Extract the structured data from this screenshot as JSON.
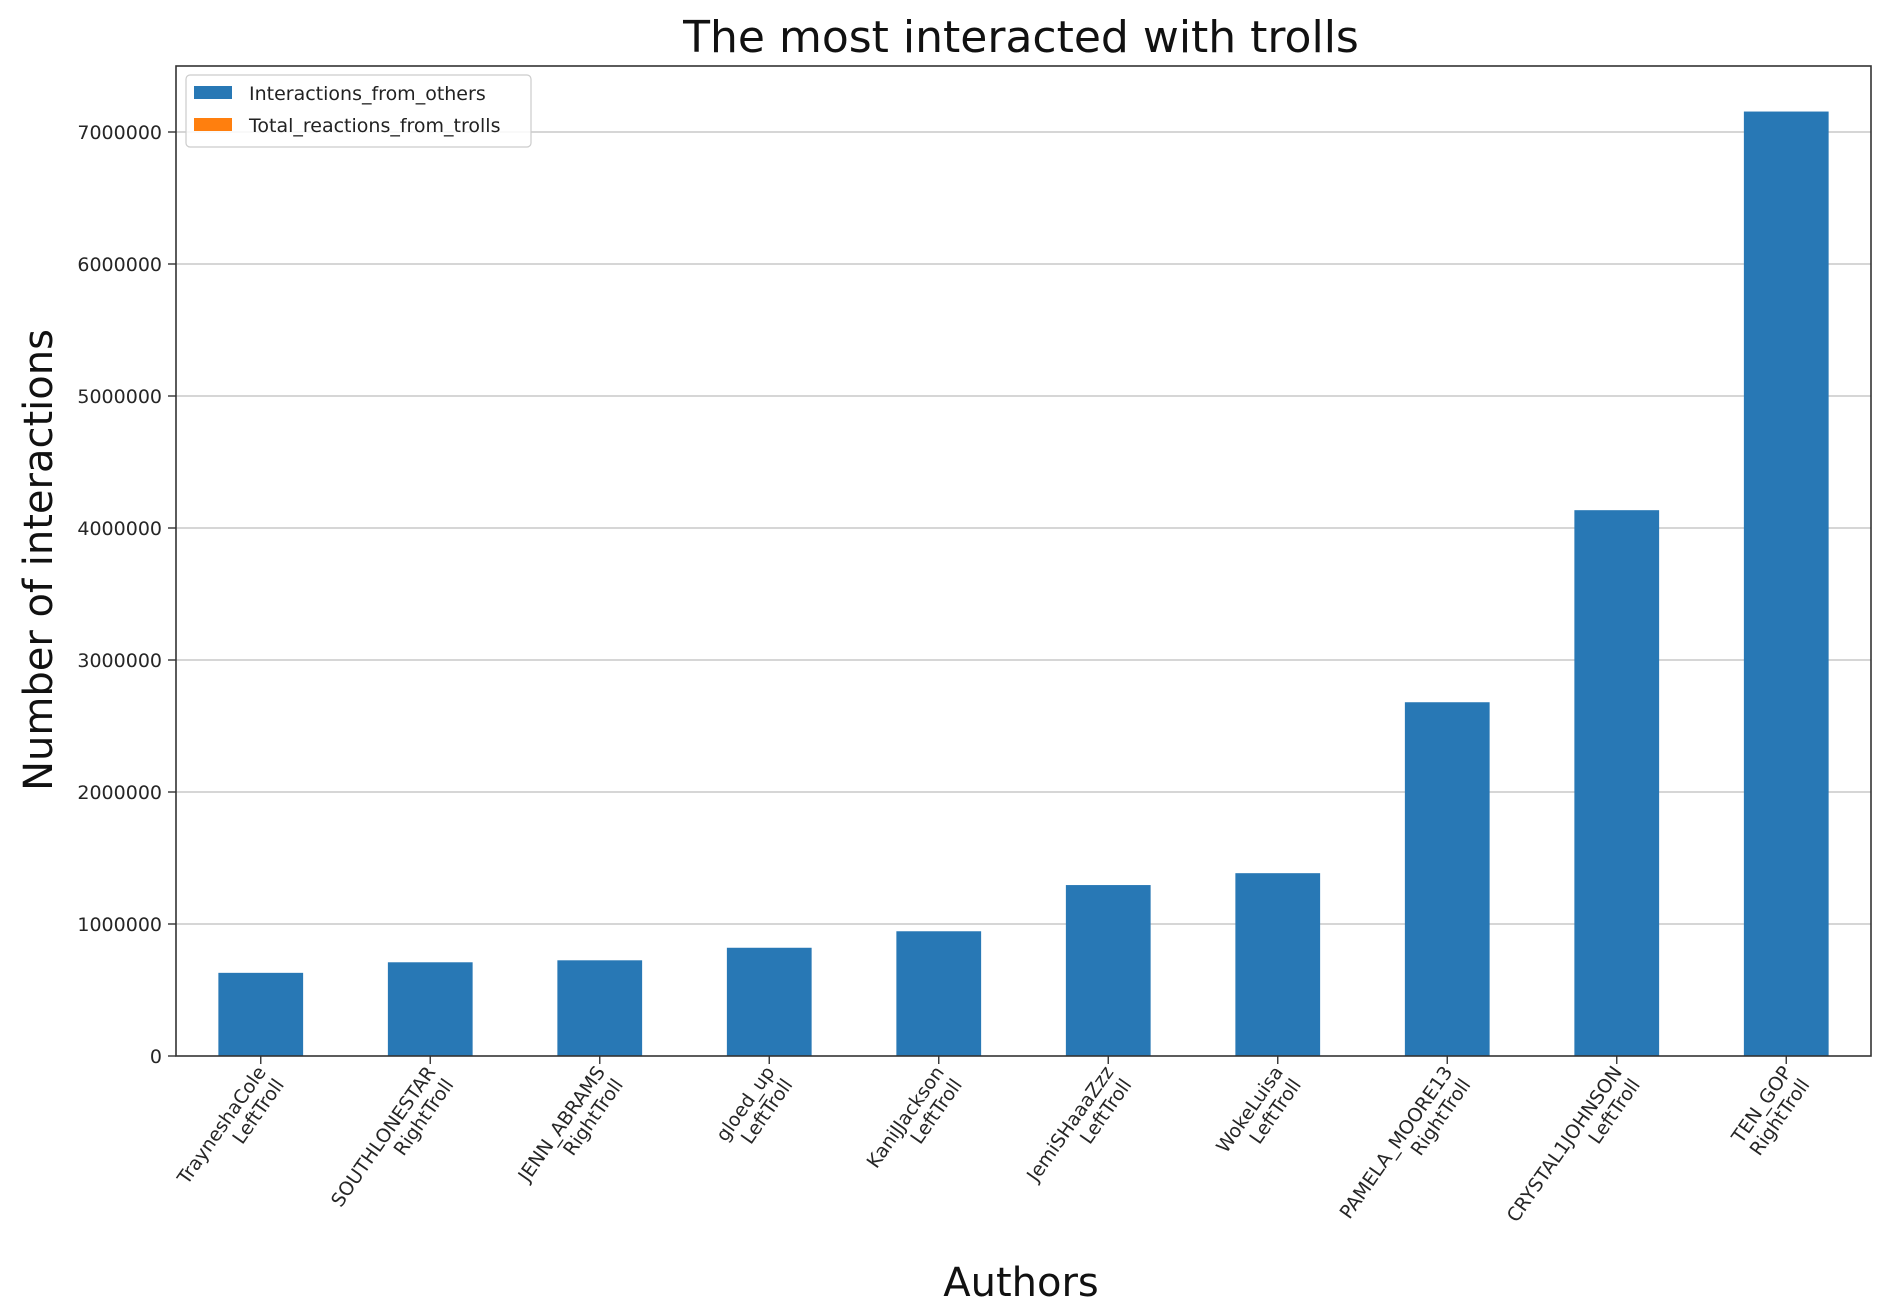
{
  "chart_data": {
    "type": "bar",
    "title": "The most interacted with trolls",
    "xlabel": "Authors",
    "ylabel": "Number of interactions",
    "categories": [
      [
        "TrayneshaCole",
        "LeftTroll"
      ],
      [
        "SOUTHLONESTAR",
        "RightTroll"
      ],
      [
        "JENN_ABRAMS",
        "RightTroll"
      ],
      [
        "gloed_up",
        "LeftTroll"
      ],
      [
        "KaniJJackson",
        "LeftTroll"
      ],
      [
        "JemiSHaaaZzz",
        "LeftTroll"
      ],
      [
        "WokeLuisa",
        "LeftTroll"
      ],
      [
        "PAMELA_MOORE13",
        "RightTroll"
      ],
      [
        "CRYSTAL1JOHNSON",
        "LeftTroll"
      ],
      [
        "TEN_GOP",
        "RightTroll"
      ]
    ],
    "series": [
      {
        "name": "Interactions_from_others",
        "color": "#2878b5",
        "values": [
          630000,
          710000,
          725000,
          820000,
          945000,
          1295000,
          1385000,
          2680000,
          4135000,
          7155000
        ]
      },
      {
        "name": "Total_reactions_from_trolls",
        "color": "#ff7f0e",
        "values": [
          0,
          0,
          0,
          0,
          0,
          0,
          0,
          0,
          0,
          0
        ]
      }
    ],
    "ylim": [
      0,
      7500000
    ],
    "yticks": [
      0,
      1000000,
      2000000,
      3000000,
      4000000,
      5000000,
      6000000,
      7000000
    ],
    "ytick_labels": [
      "0",
      "1000000",
      "2000000",
      "3000000",
      "4000000",
      "5000000",
      "6000000",
      "7000000"
    ],
    "grid": "horizontal",
    "legend_position": "upper-left"
  }
}
